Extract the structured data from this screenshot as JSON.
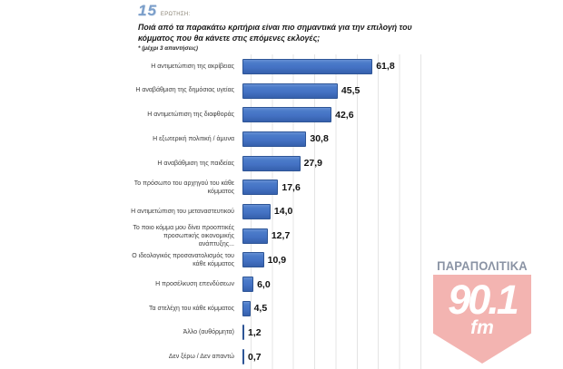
{
  "header": {
    "question_number": "15",
    "question_label": "ΕΡΩΤΗΣΗ:",
    "question_text": "Ποιά από τα παρακάτω κριτήρια είναι πιο σημαντικά για την επιλογή του κόμματος που θα κάνετε στις επόμενες εκλογές;",
    "note": "* (μέχρι 3 απαντήσεις)"
  },
  "chart_data": {
    "type": "bar",
    "orientation": "horizontal",
    "title": "",
    "xlabel": "",
    "ylabel": "",
    "xlim": [
      0,
      80
    ],
    "gridline_step": 10,
    "grid": true,
    "legend": false,
    "bar_color": "#4472c4",
    "bar_border_color": "#2e5596",
    "gridline_color": "#e4e4e4",
    "categories": [
      "Η αντιμετώπιση της ακρίβειας",
      "Η αναβάθμιση της δημόσιας υγείας",
      "Η αντιμετώπιση της διαφθοράς",
      "Η εξωτερική πολιτική / άμυνα",
      "Η αναβάθμιση της παιδείας",
      "Το πρόσωπο του αρχηγού του κάθε κόμματος",
      "Η αντιμετώπιση του μεταναστευτικού",
      "Το ποιο κόμμα μου δίνει προοπτικές προσωπικής οικονομικής ανάπτυξης...",
      "Ο ιδεολογικός προσανατολισμός του κάθε κόμματος",
      "Η προσέλκυση επενδύσεων",
      "Τα στελέχη του κάθε κόμματος",
      "Άλλο (αυθόρμητα)",
      "Δεν ξέρω / Δεν απαντώ"
    ],
    "values": [
      61.8,
      45.5,
      42.6,
      30.8,
      27.9,
      17.6,
      14.0,
      12.7,
      10.9,
      6.0,
      4.5,
      1.2,
      0.7
    ],
    "value_labels": [
      "61,8",
      "45,5",
      "42,6",
      "30,8",
      "27,9",
      "17,6",
      "14,0",
      "12,7",
      "10,9",
      "6,0",
      "4,5",
      "1,2",
      "0,7"
    ]
  },
  "logo": {
    "brand": "ΠΑΡΑΠΟΛΙΤΙΚΑ",
    "frequency": "90.1",
    "band": "fm",
    "badge_color": "#f3b4b1",
    "brand_color": "#8a93a4"
  }
}
